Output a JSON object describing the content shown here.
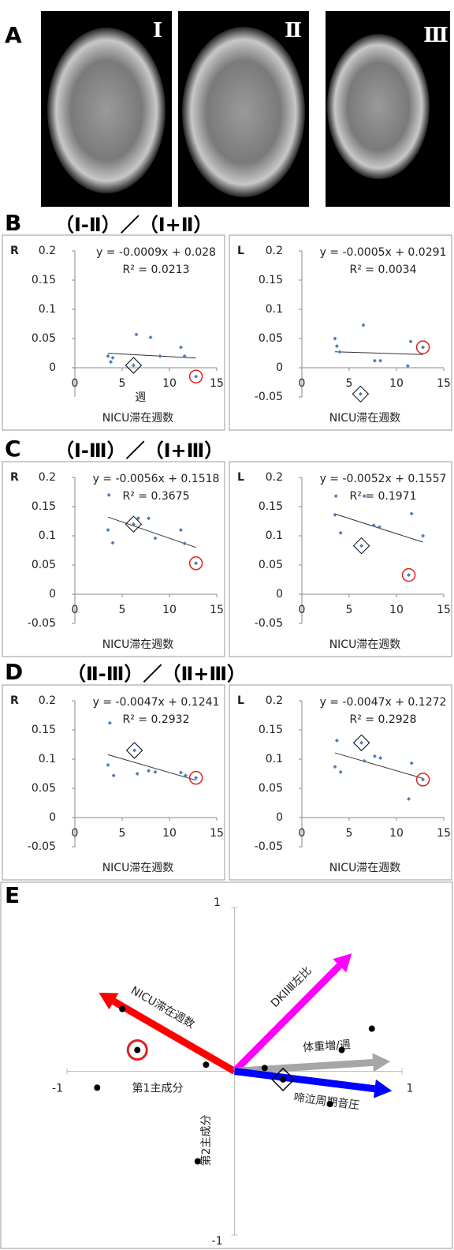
{
  "figure": {
    "panel_labels": [
      "A",
      "B",
      "C",
      "D",
      "E"
    ],
    "section_titles": [
      "（Ⅰ-Ⅱ）／（Ⅰ+Ⅱ）",
      "（Ⅰ-Ⅲ）／（Ⅰ+Ⅲ）",
      "（Ⅱ-Ⅲ）／（Ⅱ+Ⅲ）"
    ],
    "image_labels": [
      "Ⅰ",
      "Ⅱ",
      "Ⅲ"
    ]
  },
  "chart_data": [
    {
      "type": "scatter",
      "title": "R",
      "x_label": "NICU滞在週数",
      "note": "週",
      "color": "#4a7ebb",
      "x": [
        3.5,
        3.8,
        4,
        6.5,
        8,
        9,
        11.2,
        11.6,
        12.8,
        6.2
      ],
      "y": [
        0.02,
        0.01,
        0.017,
        0.057,
        0.052,
        0.02,
        0.035,
        0.02,
        -0.015,
        0.004
      ],
      "circled": 8,
      "diamond": 9,
      "xlim": [
        0,
        15
      ],
      "xticks": [
        0,
        5,
        10,
        15
      ],
      "ylim": [
        -0.05,
        0.2
      ],
      "yticks": [
        0,
        0.05,
        0.1,
        0.15,
        0.2
      ],
      "trendline": {
        "slope": -0.0009,
        "intercept": 0.028,
        "label": "y = -0.0009x + 0.028"
      },
      "r2_label": "R² = 0.0213"
    },
    {
      "type": "scatter",
      "title": "L",
      "x_label": "NICU滞在週数",
      "color": "#4a7ebb",
      "x": [
        3.5,
        3.7,
        4,
        6.5,
        7.7,
        8.3,
        11.2,
        11.5,
        12.8,
        6.2
      ],
      "y": [
        0.05,
        0.037,
        0.027,
        0.073,
        0.012,
        0.012,
        0.003,
        0.045,
        0.035,
        -0.045
      ],
      "circled": 8,
      "diamond": 9,
      "xlim": [
        0,
        15
      ],
      "xticks": [
        0,
        5,
        10,
        15
      ],
      "ylim": [
        -0.05,
        0.2
      ],
      "yticks": [
        -0.05,
        0,
        0.05,
        0.1,
        0.15,
        0.2
      ],
      "trendline": {
        "slope": -0.0005,
        "intercept": 0.0291,
        "label": "y = -0.0005x + 0.0291"
      },
      "r2_label": "R² = 0.0034"
    },
    {
      "type": "scatter",
      "title": "R",
      "x_label": "NICU滞在週数",
      "color": "#4a7ebb",
      "x": [
        3.5,
        3.6,
        4,
        6.2,
        6.7,
        7.8,
        8.5,
        11.2,
        11.6,
        12.8
      ],
      "y": [
        0.11,
        0.17,
        0.088,
        0.12,
        0.13,
        0.13,
        0.096,
        0.11,
        0.087,
        0.053
      ],
      "circled": 9,
      "diamond": 3,
      "xlim": [
        0,
        15
      ],
      "xticks": [
        0,
        5,
        10,
        15
      ],
      "ylim": [
        -0.05,
        0.2
      ],
      "yticks": [
        -0.05,
        0,
        0.05,
        0.1,
        0.15,
        0.2
      ],
      "trendline": {
        "slope": -0.0056,
        "intercept": 0.1518,
        "label": "y = -0.0056x + 0.1518"
      },
      "r2_label": "R² = 0.3675"
    },
    {
      "type": "scatter",
      "title": "L",
      "x_label": "NICU滞在週数",
      "color": "#4a7ebb",
      "x": [
        3.5,
        3.6,
        4.1,
        6.3,
        6.6,
        7.6,
        8.2,
        11.3,
        11.6,
        12.8
      ],
      "y": [
        0.136,
        0.168,
        0.105,
        0.083,
        0.168,
        0.118,
        0.115,
        0.033,
        0.138,
        0.1
      ],
      "circled": 7,
      "diamond": 3,
      "xlim": [
        0,
        15
      ],
      "xticks": [
        0,
        5,
        10,
        15
      ],
      "ylim": [
        -0.05,
        0.2
      ],
      "yticks": [
        -0.05,
        0,
        0.05,
        0.1,
        0.15,
        0.2
      ],
      "trendline": {
        "slope": -0.0052,
        "intercept": 0.1557,
        "label": "y = -0.0052x + 0.1557"
      },
      "r2_label": "R² = 0.1971"
    },
    {
      "type": "scatter",
      "title": "R",
      "x_label": "NICU滞在週数",
      "color": "#4a7ebb",
      "x": [
        3.5,
        3.7,
        4.1,
        6.3,
        6.6,
        7.8,
        8.5,
        11.2,
        11.7,
        12.8
      ],
      "y": [
        0.09,
        0.162,
        0.072,
        0.115,
        0.075,
        0.08,
        0.078,
        0.077,
        0.072,
        0.068
      ],
      "circled": 9,
      "diamond": 3,
      "xlim": [
        0,
        15
      ],
      "xticks": [
        0,
        5,
        10,
        15
      ],
      "ylim": [
        -0.05,
        0.2
      ],
      "yticks": [
        -0.05,
        0,
        0.05,
        0.1,
        0.15,
        0.2
      ],
      "trendline": {
        "slope": -0.0047,
        "intercept": 0.1241,
        "label": "y = -0.0047x + 0.1241"
      },
      "r2_label": "R² = 0.2932"
    },
    {
      "type": "scatter",
      "title": "L",
      "x_label": "NICU滞在週数",
      "color": "#4a7ebb",
      "x": [
        3.5,
        3.7,
        4.1,
        6.3,
        6.6,
        7.7,
        8.3,
        11.3,
        11.6,
        12.8
      ],
      "y": [
        0.087,
        0.132,
        0.078,
        0.128,
        0.097,
        0.105,
        0.102,
        0.032,
        0.093,
        0.065
      ],
      "circled": 9,
      "diamond": 3,
      "xlim": [
        0,
        15
      ],
      "xticks": [
        0,
        5,
        10,
        15
      ],
      "ylim": [
        -0.05,
        0.2
      ],
      "yticks": [
        -0.05,
        0,
        0.05,
        0.1,
        0.15,
        0.2
      ],
      "trendline": {
        "slope": -0.0047,
        "intercept": 0.1272,
        "label": "y = -0.0047x + 0.1272"
      },
      "r2_label": "R² = 0.2928"
    },
    {
      "type": "biplot",
      "x_label": "第1主成分",
      "y_label": "第2主成分",
      "xlim": [
        -1,
        1
      ],
      "xticks": [
        -1,
        1
      ],
      "ylim": [
        -1,
        1
      ],
      "yticks": [
        -1,
        1
      ],
      "loadings": [
        {
          "name": "NICU滞在週数",
          "color": "#ff0000",
          "x": -0.81,
          "y": 0.48
        },
        {
          "name": "DKIⅠⅢ左比",
          "color": "#ff00ff",
          "x": 0.7,
          "y": 0.72
        },
        {
          "name": "体重増/週",
          "color": "#a6a6a6",
          "x": 0.93,
          "y": 0.06
        },
        {
          "name": "啼泣周期音圧",
          "color": "#0000ff",
          "x": 0.94,
          "y": -0.12
        }
      ],
      "scores": {
        "x": [
          -0.67,
          -0.58,
          -0.17,
          0.18,
          0.82,
          0.64,
          0.29,
          0.57,
          -0.82,
          -0.22
        ],
        "y": [
          0.38,
          0.13,
          0.04,
          0.02,
          0.26,
          0.13,
          -0.05,
          -0.2,
          -0.1,
          -0.55
        ]
      },
      "circled": 1,
      "diamond": 6
    }
  ]
}
